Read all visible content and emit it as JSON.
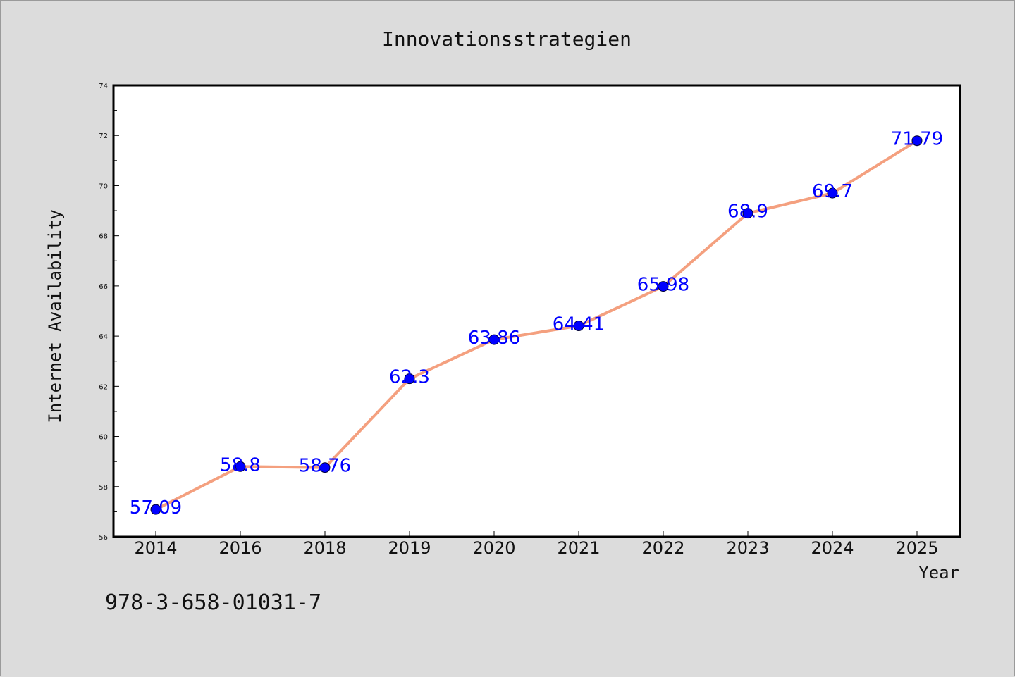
{
  "chart_data": {
    "type": "line",
    "title": "Innovationsstrategien",
    "xlabel": "Year",
    "ylabel": "Internet Availability",
    "categories": [
      "2014",
      "2016",
      "2018",
      "2019",
      "2020",
      "2021",
      "2022",
      "2023",
      "2024",
      "2025"
    ],
    "series": [
      {
        "values": [
          57.09,
          58.8,
          58.76,
          62.3,
          63.86,
          64.41,
          65.98,
          68.9,
          69.7,
          71.79
        ],
        "data_labels": [
          "57.09",
          "58.8",
          "58.76",
          "62.3",
          "63.86",
          "64.41",
          "65.98",
          "68.9",
          "69.7",
          "71.79"
        ],
        "line_color": "#f4a07f",
        "marker_color": "#0000ff"
      }
    ],
    "ylim": [
      56,
      74
    ],
    "yticks": [
      "56",
      "58",
      "60",
      "62",
      "64",
      "66",
      "68",
      "70",
      "72",
      "74"
    ],
    "grid": false,
    "legend": "none"
  },
  "footer": {
    "isbn": "978-3-658-01031-7"
  },
  "colors": {
    "background": "#dcdcdc",
    "plot_area": "#ffffff",
    "line": "#f4a07f",
    "marker": "#0000ff",
    "data_label": "#0000ff"
  }
}
